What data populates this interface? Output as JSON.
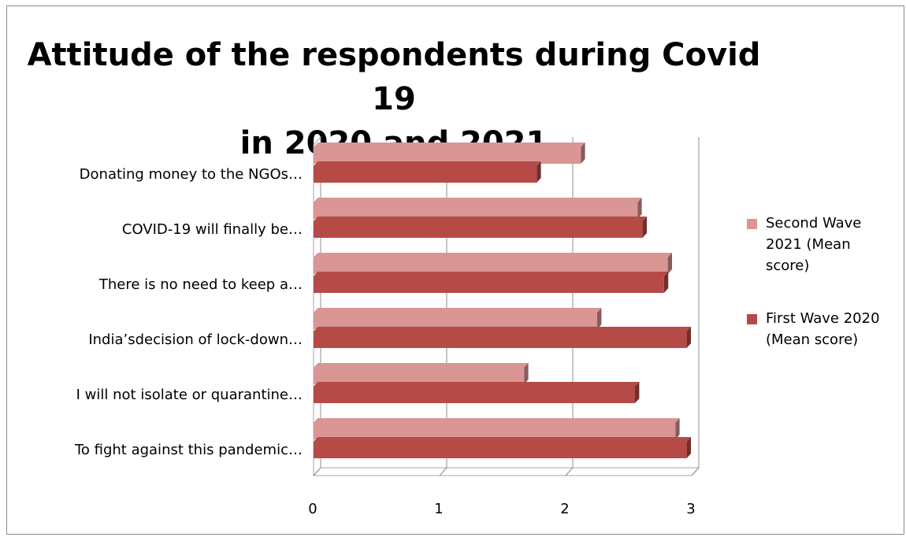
{
  "chart_data": {
    "type": "bar",
    "orientation": "horizontal",
    "title": "Attitude of the respondents during Covid 19 in 2020 and 2021",
    "title_lines": [
      "Attitude of the respondents during Covid 19",
      "in 2020 and 2021"
    ],
    "categories": [
      "Donating money to the NGOs…",
      "COVID-19 will finally be…",
      "There is no need to keep a…",
      "India’sdecision of lock-down…",
      "I will not isolate or quarantine…",
      "To fight against this pandemic…"
    ],
    "series": [
      {
        "name": "Second Wave 2021 (Mean score)",
        "legend_lines": [
          "Second Wave",
          "2021 (Mean",
          "score)"
        ],
        "color": "#d99694",
        "values": [
          2.12,
          2.57,
          2.81,
          2.25,
          1.67,
          2.87
        ]
      },
      {
        "name": "First Wave 2020 (Mean score)",
        "legend_lines": [
          "First Wave 2020",
          "(Mean score)"
        ],
        "color": "#b64a47",
        "values": [
          1.77,
          2.61,
          2.78,
          2.96,
          2.55,
          2.96
        ]
      }
    ],
    "xlim": [
      0,
      3
    ],
    "xticks": [
      "0",
      "1",
      "2",
      "3"
    ],
    "grid": true,
    "legend_position": "right"
  }
}
